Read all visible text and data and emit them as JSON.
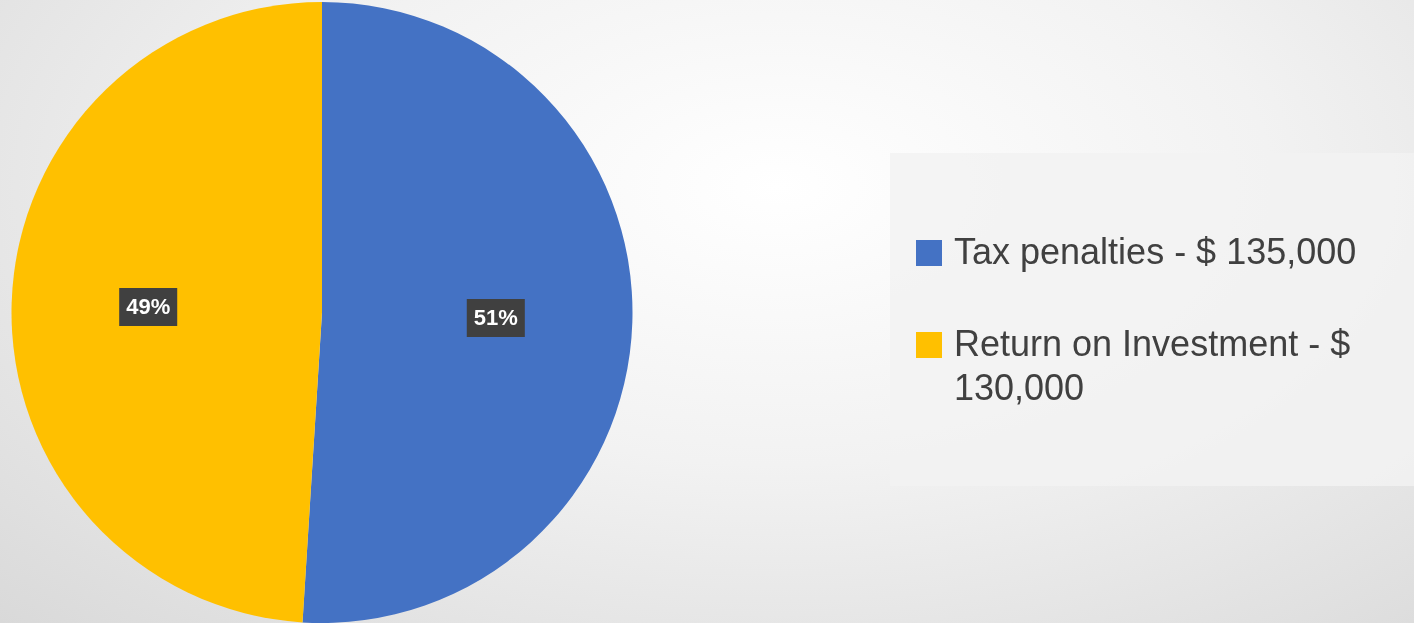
{
  "chart_data": {
    "type": "pie",
    "categories": [
      "Tax penalties - $ 135,000",
      "Return on Investment - $ 130,000"
    ],
    "values": [
      51,
      49
    ],
    "colors": [
      "#4472c4",
      "#ffc000"
    ],
    "value_labels": [
      "51%",
      "49%"
    ],
    "legend": "right"
  }
}
